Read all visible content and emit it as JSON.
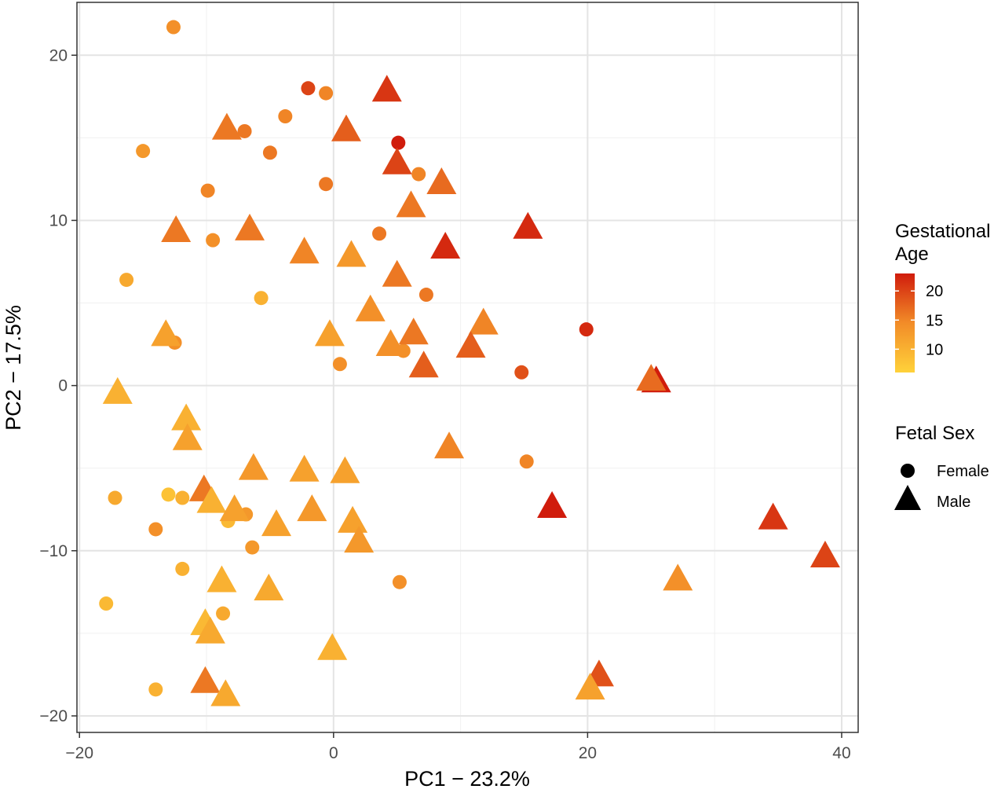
{
  "chart_data": {
    "type": "scatter",
    "xlabel": "PC1 − 23.2%",
    "ylabel": "PC2 − 17.5%",
    "xlim": [
      -20.2,
      41.3
    ],
    "ylim": [
      -21.0,
      23.2
    ],
    "x_ticks": [
      -20,
      0,
      20,
      40
    ],
    "y_ticks": [
      -20,
      -10,
      0,
      10,
      20
    ],
    "x_tick_labels": [
      "−20",
      "0",
      "20",
      "40"
    ],
    "y_tick_labels": [
      "−20",
      "−10",
      "0",
      "10",
      "20"
    ],
    "grid": true,
    "color_legend": {
      "title_lines": [
        "Gestational",
        "Age"
      ],
      "range": [
        6,
        23
      ],
      "ticks": [
        20,
        15,
        10
      ],
      "tick_labels": [
        "20",
        "15",
        "10"
      ],
      "colors": {
        "low": "#FFD23A",
        "mid": "#F28C28",
        "high": "#D01C0C"
      }
    },
    "shape_legend": {
      "title": "Fetal Sex",
      "entries": [
        {
          "label": "Female",
          "shape": "circle"
        },
        {
          "label": "Male",
          "shape": "triangle"
        }
      ]
    },
    "points": [
      {
        "x": -12.6,
        "y": 21.7,
        "sex": "Female",
        "age": 14
      },
      {
        "x": -2.0,
        "y": 18.0,
        "sex": "Female",
        "age": 20
      },
      {
        "x": -0.6,
        "y": 17.7,
        "sex": "Female",
        "age": 15
      },
      {
        "x": -3.8,
        "y": 16.3,
        "sex": "Female",
        "age": 15
      },
      {
        "x": -7.0,
        "y": 15.4,
        "sex": "Female",
        "age": 16
      },
      {
        "x": -15.0,
        "y": 14.2,
        "sex": "Female",
        "age": 13
      },
      {
        "x": -5.0,
        "y": 14.1,
        "sex": "Female",
        "age": 16
      },
      {
        "x": 5.1,
        "y": 14.7,
        "sex": "Female",
        "age": 23
      },
      {
        "x": 6.7,
        "y": 12.8,
        "sex": "Female",
        "age": 15
      },
      {
        "x": -0.6,
        "y": 12.2,
        "sex": "Female",
        "age": 16
      },
      {
        "x": -9.9,
        "y": 11.8,
        "sex": "Female",
        "age": 15
      },
      {
        "x": -9.5,
        "y": 8.8,
        "sex": "Female",
        "age": 14
      },
      {
        "x": 3.6,
        "y": 9.2,
        "sex": "Female",
        "age": 16
      },
      {
        "x": -16.3,
        "y": 6.4,
        "sex": "Female",
        "age": 11
      },
      {
        "x": -5.7,
        "y": 5.3,
        "sex": "Female",
        "age": 10
      },
      {
        "x": 7.3,
        "y": 5.5,
        "sex": "Female",
        "age": 16
      },
      {
        "x": -12.5,
        "y": 2.6,
        "sex": "Female",
        "age": 14
      },
      {
        "x": 5.5,
        "y": 2.1,
        "sex": "Female",
        "age": 14
      },
      {
        "x": 0.5,
        "y": 1.3,
        "sex": "Female",
        "age": 14
      },
      {
        "x": 19.9,
        "y": 3.4,
        "sex": "Female",
        "age": 22
      },
      {
        "x": 14.8,
        "y": 0.8,
        "sex": "Female",
        "age": 19
      },
      {
        "x": 15.2,
        "y": -4.6,
        "sex": "Female",
        "age": 15
      },
      {
        "x": -17.2,
        "y": -6.8,
        "sex": "Female",
        "age": 11
      },
      {
        "x": -13.0,
        "y": -6.6,
        "sex": "Female",
        "age": 8
      },
      {
        "x": -11.9,
        "y": -6.8,
        "sex": "Female",
        "age": 10
      },
      {
        "x": -14.0,
        "y": -8.7,
        "sex": "Female",
        "age": 14
      },
      {
        "x": -6.9,
        "y": -7.8,
        "sex": "Female",
        "age": 13
      },
      {
        "x": -8.3,
        "y": -8.2,
        "sex": "Female",
        "age": 9
      },
      {
        "x": -6.4,
        "y": -9.8,
        "sex": "Female",
        "age": 13
      },
      {
        "x": -11.9,
        "y": -11.1,
        "sex": "Female",
        "age": 10
      },
      {
        "x": 5.2,
        "y": -11.9,
        "sex": "Female",
        "age": 14
      },
      {
        "x": -17.9,
        "y": -13.2,
        "sex": "Female",
        "age": 9
      },
      {
        "x": -8.7,
        "y": -13.8,
        "sex": "Female",
        "age": 11
      },
      {
        "x": -14.0,
        "y": -18.4,
        "sex": "Female",
        "age": 10
      },
      {
        "x": 4.2,
        "y": 18.0,
        "sex": "Male",
        "age": 21
      },
      {
        "x": -8.4,
        "y": 15.7,
        "sex": "Male",
        "age": 16
      },
      {
        "x": 1.0,
        "y": 15.6,
        "sex": "Male",
        "age": 18
      },
      {
        "x": 5.0,
        "y": 13.6,
        "sex": "Male",
        "age": 20
      },
      {
        "x": 8.5,
        "y": 12.4,
        "sex": "Male",
        "age": 17
      },
      {
        "x": 6.1,
        "y": 11.0,
        "sex": "Male",
        "age": 16
      },
      {
        "x": -12.4,
        "y": 9.5,
        "sex": "Male",
        "age": 16
      },
      {
        "x": -6.6,
        "y": 9.6,
        "sex": "Male",
        "age": 16
      },
      {
        "x": 15.3,
        "y": 9.7,
        "sex": "Male",
        "age": 22
      },
      {
        "x": 8.8,
        "y": 8.5,
        "sex": "Male",
        "age": 22
      },
      {
        "x": -2.3,
        "y": 8.2,
        "sex": "Male",
        "age": 15
      },
      {
        "x": 1.4,
        "y": 8.0,
        "sex": "Male",
        "age": 13
      },
      {
        "x": 5.0,
        "y": 6.8,
        "sex": "Male",
        "age": 16
      },
      {
        "x": 2.9,
        "y": 4.7,
        "sex": "Male",
        "age": 14
      },
      {
        "x": 11.8,
        "y": 3.9,
        "sex": "Male",
        "age": 15
      },
      {
        "x": -13.2,
        "y": 3.2,
        "sex": "Male",
        "age": 12
      },
      {
        "x": -0.3,
        "y": 3.2,
        "sex": "Male",
        "age": 12
      },
      {
        "x": 6.3,
        "y": 3.3,
        "sex": "Male",
        "age": 16
      },
      {
        "x": 4.5,
        "y": 2.6,
        "sex": "Male",
        "age": 14
      },
      {
        "x": 10.8,
        "y": 2.5,
        "sex": "Male",
        "age": 18
      },
      {
        "x": 7.1,
        "y": 1.3,
        "sex": "Male",
        "age": 18
      },
      {
        "x": -17.0,
        "y": -0.3,
        "sex": "Male",
        "age": 10
      },
      {
        "x": 25.4,
        "y": 0.4,
        "sex": "Male",
        "age": 23
      },
      {
        "x": 25.0,
        "y": 0.5,
        "sex": "Male",
        "age": 17
      },
      {
        "x": -11.6,
        "y": -1.9,
        "sex": "Male",
        "age": 10
      },
      {
        "x": -11.5,
        "y": -3.1,
        "sex": "Male",
        "age": 12
      },
      {
        "x": 9.1,
        "y": -3.6,
        "sex": "Male",
        "age": 15
      },
      {
        "x": -6.3,
        "y": -4.9,
        "sex": "Male",
        "age": 13
      },
      {
        "x": -2.3,
        "y": -5.0,
        "sex": "Male",
        "age": 12
      },
      {
        "x": 0.9,
        "y": -5.1,
        "sex": "Male",
        "age": 12
      },
      {
        "x": -10.2,
        "y": -6.2,
        "sex": "Male",
        "age": 16
      },
      {
        "x": -9.6,
        "y": -6.9,
        "sex": "Male",
        "age": 10
      },
      {
        "x": -7.8,
        "y": -7.4,
        "sex": "Male",
        "age": 12
      },
      {
        "x": -1.7,
        "y": -7.4,
        "sex": "Male",
        "age": 13
      },
      {
        "x": 17.2,
        "y": -7.2,
        "sex": "Male",
        "age": 23
      },
      {
        "x": 1.5,
        "y": -8.1,
        "sex": "Male",
        "age": 12
      },
      {
        "x": -4.5,
        "y": -8.3,
        "sex": "Male",
        "age": 12
      },
      {
        "x": 2.0,
        "y": -9.3,
        "sex": "Male",
        "age": 13
      },
      {
        "x": 34.6,
        "y": -7.9,
        "sex": "Male",
        "age": 21
      },
      {
        "x": 38.7,
        "y": -10.2,
        "sex": "Male",
        "age": 20
      },
      {
        "x": -8.8,
        "y": -11.7,
        "sex": "Male",
        "age": 10
      },
      {
        "x": -5.1,
        "y": -12.2,
        "sex": "Male",
        "age": 11
      },
      {
        "x": 27.1,
        "y": -11.6,
        "sex": "Male",
        "age": 14
      },
      {
        "x": -10.1,
        "y": -14.3,
        "sex": "Male",
        "age": 9
      },
      {
        "x": -9.7,
        "y": -14.8,
        "sex": "Male",
        "age": 11
      },
      {
        "x": -0.1,
        "y": -15.8,
        "sex": "Male",
        "age": 10
      },
      {
        "x": -10.1,
        "y": -17.8,
        "sex": "Male",
        "age": 16
      },
      {
        "x": -8.5,
        "y": -18.6,
        "sex": "Male",
        "age": 11
      },
      {
        "x": 20.9,
        "y": -17.4,
        "sex": "Male",
        "age": 19
      },
      {
        "x": 20.2,
        "y": -18.2,
        "sex": "Male",
        "age": 12
      }
    ]
  }
}
